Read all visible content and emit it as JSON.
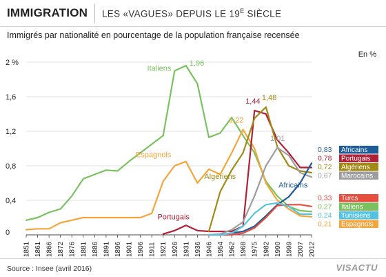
{
  "header": {
    "title": "IMMIGRATION",
    "subtitle_pre": "LES «VAGUES» DEPUIS LE 19",
    "subtitle_sup": "E",
    "subtitle_post": " SIÈCLE"
  },
  "chart_title": "Immigrés par nationalité en pourcentage de la population française recensée",
  "unit": "En %",
  "source": "Source : Insee (avril 2016)",
  "logo": "VISACTU",
  "chart_data": {
    "type": "line",
    "x": [
      1851,
      1861,
      1866,
      1872,
      1876,
      1881,
      1886,
      1891,
      1896,
      1901,
      1906,
      1911,
      1921,
      1926,
      1931,
      1936,
      1946,
      1954,
      1962,
      1968,
      1975,
      1982,
      1990,
      1999,
      2007,
      2012
    ],
    "ylim": [
      0,
      2
    ],
    "yticks": [
      {
        "v": 0,
        "label": "0"
      },
      {
        "v": 0.4,
        "label": "0,4"
      },
      {
        "v": 0.8,
        "label": "0,8"
      },
      {
        "v": 1.2,
        "label": "1,2"
      },
      {
        "v": 1.6,
        "label": "1,6"
      },
      {
        "v": 2,
        "label": "2 %"
      }
    ],
    "grid": true,
    "series": [
      {
        "name": "Italiens",
        "color": "#7ac15f",
        "x": [
          1851,
          1861,
          1866,
          1872,
          1876,
          1881,
          1886,
          1891,
          1896,
          1901,
          1906,
          1911,
          1921,
          1926,
          1931,
          1936,
          1946,
          1954,
          1962,
          1968,
          1975,
          1982,
          1990,
          1999,
          2007,
          2012
        ],
        "values": [
          0.17,
          0.2,
          0.26,
          0.3,
          0.45,
          0.65,
          0.7,
          0.75,
          0.74,
          0.85,
          0.95,
          1.05,
          1.15,
          1.9,
          1.96,
          1.75,
          1.13,
          1.18,
          1.36,
          1.15,
          0.95,
          0.62,
          0.45,
          0.33,
          0.28,
          0.27
        ]
      },
      {
        "name": "Espagnols",
        "color": "#f4a53c",
        "x": [
          1851,
          1861,
          1866,
          1872,
          1876,
          1881,
          1886,
          1891,
          1896,
          1901,
          1906,
          1911,
          1921,
          1926,
          1931,
          1936,
          1946,
          1954,
          1962,
          1968,
          1975,
          1982,
          1990,
          1999,
          2007,
          2012
        ],
        "values": [
          0.06,
          0.07,
          0.07,
          0.14,
          0.17,
          0.2,
          0.2,
          0.2,
          0.2,
          0.2,
          0.2,
          0.25,
          0.62,
          0.8,
          0.85,
          0.6,
          0.76,
          0.7,
          0.95,
          1.22,
          1.0,
          0.6,
          0.4,
          0.3,
          0.22,
          0.21
        ]
      },
      {
        "name": "Portugais",
        "color": "#b21f36",
        "x": [
          1921,
          1926,
          1931,
          1936,
          1946,
          1954,
          1962,
          1968,
          1975,
          1982,
          1990,
          1999,
          2007,
          2012
        ],
        "values": [
          0.01,
          0.05,
          0.11,
          0.05,
          0.04,
          0.04,
          0.04,
          0.1,
          1.44,
          1.4,
          1.1,
          0.95,
          0.78,
          0.78
        ]
      },
      {
        "name": "Algériens",
        "color": "#a08a14",
        "x": [
          1946,
          1954,
          1962,
          1968,
          1975,
          1982,
          1990,
          1999,
          2007,
          2012
        ],
        "values": [
          0.04,
          0.5,
          0.75,
          0.95,
          1.35,
          1.48,
          1.02,
          0.8,
          0.74,
          0.72
        ]
      },
      {
        "name": "Marocains",
        "color": "#9d9d9d",
        "x": [
          1946,
          1954,
          1962,
          1968,
          1975,
          1982,
          1990,
          1999,
          2007,
          2012
        ],
        "values": [
          0.0,
          0.01,
          0.06,
          0.15,
          0.45,
          0.8,
          1.01,
          0.92,
          0.72,
          0.67
        ]
      },
      {
        "name": "Africains",
        "color": "#1d5c96",
        "x": [
          1946,
          1954,
          1962,
          1968,
          1975,
          1982,
          1990,
          1999,
          2007,
          2012
        ],
        "values": [
          0.0,
          0.0,
          0.02,
          0.04,
          0.1,
          0.22,
          0.35,
          0.44,
          0.6,
          0.83
        ]
      },
      {
        "name": "Turcs",
        "color": "#e84e3d",
        "x": [
          1946,
          1954,
          1962,
          1968,
          1975,
          1982,
          1990,
          1999,
          2007,
          2012
        ],
        "values": [
          0.0,
          0.0,
          0.0,
          0.02,
          0.08,
          0.2,
          0.34,
          0.35,
          0.35,
          0.33
        ]
      },
      {
        "name": "Tunisiens",
        "color": "#56c2e2",
        "x": [
          1946,
          1954,
          1962,
          1968,
          1975,
          1982,
          1990,
          1999,
          2007,
          2012
        ],
        "values": [
          0.0,
          0.0,
          0.02,
          0.1,
          0.25,
          0.35,
          0.37,
          0.33,
          0.24,
          0.24
        ]
      }
    ],
    "annotations": [
      {
        "text": "Italiens",
        "series": "Italiens",
        "x": 1909,
        "y": 1.9,
        "anchor": "start"
      },
      {
        "text": "1,96",
        "series": "Italiens",
        "x": 1932.5,
        "y": 1.96,
        "anchor": "start"
      },
      {
        "text": "Espagnols",
        "series": "Espagnols",
        "x": 1904,
        "y": 0.9,
        "anchor": "start"
      },
      {
        "text": "1,22",
        "series": "Espagnols",
        "x": 1960,
        "y": 1.3,
        "anchor": "start"
      },
      {
        "text": "Portugais",
        "series": "Portugais",
        "x": 1916,
        "y": 0.18,
        "anchor": "start"
      },
      {
        "text": "1,44",
        "series": "Portugais",
        "x": 1969.5,
        "y": 1.52,
        "anchor": "start"
      },
      {
        "text": "Algériens",
        "series": "Algériens",
        "x": 1942,
        "y": 0.65,
        "anchor": "start"
      },
      {
        "text": "1,48",
        "series": "Algériens",
        "x": 1979.5,
        "y": 1.56,
        "anchor": "start"
      },
      {
        "text": "1,01",
        "series": "Marocains",
        "x": 1985,
        "y": 1.09,
        "anchor": "start"
      },
      {
        "text": "Africains",
        "series": "Africains",
        "x": 1991,
        "y": 0.55,
        "anchor": "start"
      }
    ],
    "legend": {
      "placement": "right",
      "entries": [
        {
          "name": "Africains",
          "value": "0,83",
          "color": "#1d5c96"
        },
        {
          "name": "Portugais",
          "value": "0,78",
          "color": "#b21f36"
        },
        {
          "name": "Algériens",
          "value": "0,72",
          "color": "#a08a14"
        },
        {
          "name": "Marocains",
          "value": "0,67",
          "color": "#9d9d9d"
        },
        {
          "name": "Turcs",
          "value": "0,33",
          "color": "#e84e3d"
        },
        {
          "name": "Italiens",
          "value": "0,27",
          "color": "#7ac15f"
        },
        {
          "name": "Tunisiens",
          "value": "0,24",
          "color": "#56c2e2"
        },
        {
          "name": "Espagnols",
          "value": "0,21",
          "color": "#f4a53c"
        }
      ]
    }
  }
}
